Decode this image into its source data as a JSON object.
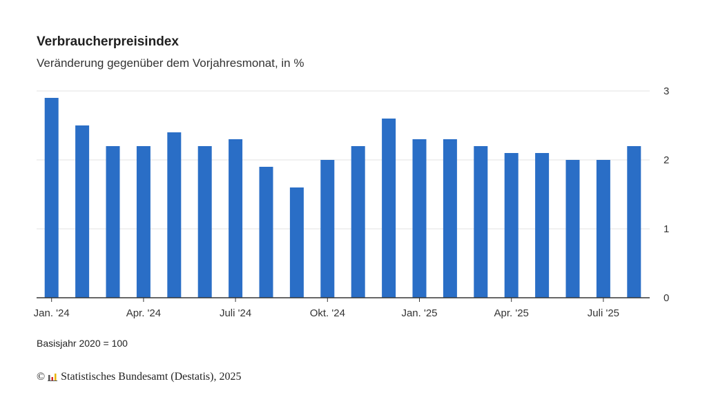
{
  "header": {
    "title": "Verbraucherpreisindex",
    "subtitle": "Veränderung gegenüber dem Vorjahresmonat, in %"
  },
  "footnote": "Basisjahr 2020 = 100",
  "source": {
    "copyright_symbol": "©",
    "logo_icon": "destatis-logo-icon",
    "text": "Statistisches Bundesamt (Destatis), 2025"
  },
  "chart_data": {
    "type": "bar",
    "title": "Verbraucherpreisindex",
    "subtitle": "Veränderung gegenüber dem Vorjahresmonat, in %",
    "categories": [
      "Jan 2024",
      "Feb 2024",
      "Mär 2024",
      "Apr 2024",
      "Mai 2024",
      "Jun 2024",
      "Jul 2024",
      "Aug 2024",
      "Sep 2024",
      "Okt 2024",
      "Nov 2024",
      "Dez 2024",
      "Jan 2025",
      "Feb 2025",
      "Mär 2025",
      "Apr 2025",
      "Mai 2025",
      "Jun 2025",
      "Jul 2025",
      "Aug 2025"
    ],
    "values": [
      2.9,
      2.5,
      2.2,
      2.2,
      2.4,
      2.2,
      2.3,
      1.9,
      1.6,
      2.0,
      2.2,
      2.6,
      2.3,
      2.3,
      2.2,
      2.1,
      2.1,
      2.0,
      2.0,
      2.2
    ],
    "x_tick_labels": [
      {
        "index": 0,
        "label": "Jan. '24"
      },
      {
        "index": 3,
        "label": "Apr. '24"
      },
      {
        "index": 6,
        "label": "Juli '24"
      },
      {
        "index": 9,
        "label": "Okt. '24"
      },
      {
        "index": 12,
        "label": "Jan. '25"
      },
      {
        "index": 15,
        "label": "Apr. '25"
      },
      {
        "index": 18,
        "label": "Juli '25"
      }
    ],
    "y_ticks": [
      0,
      1,
      2,
      3
    ],
    "ylim": [
      0,
      3
    ],
    "y_axis_position": "right",
    "grid": true,
    "bar_color": "#2a6ec6",
    "grid_color": "#e3e3e3",
    "axis_color": "#333333"
  }
}
